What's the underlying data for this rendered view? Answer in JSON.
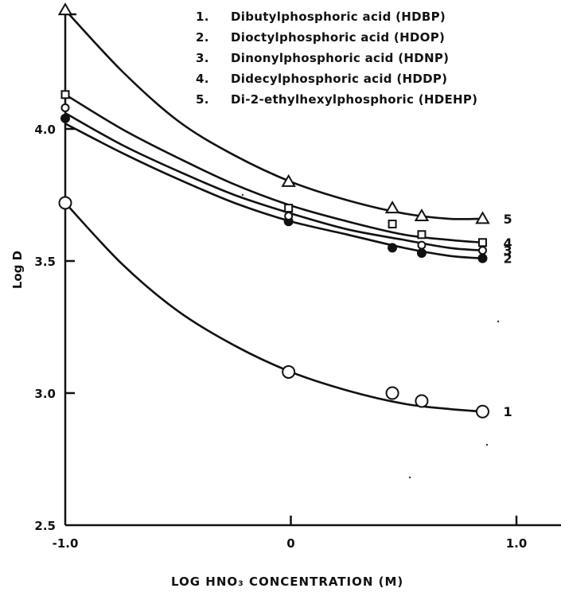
{
  "chart_data": {
    "type": "line",
    "xlabel": "LOG HNO₃ CONCENTRATION (M)",
    "ylabel": "Log D",
    "xlim": [
      -1.0,
      1.2
    ],
    "ylim": [
      2.5,
      4.5
    ],
    "xticks": [
      {
        "value": -1.0,
        "label": "-1.0"
      },
      {
        "value": 0,
        "label": "0"
      },
      {
        "value": 1.0,
        "label": "1.0"
      }
    ],
    "yticks": [
      {
        "value": 2.5,
        "label": "2.5"
      },
      {
        "value": 3.0,
        "label": "3.0"
      },
      {
        "value": 3.5,
        "label": "3.5"
      },
      {
        "value": 4.0,
        "label": "4.0"
      }
    ],
    "legend": [
      {
        "number": "1.",
        "label": "Dibutylphosphoric acid (HDBP)"
      },
      {
        "number": "2.",
        "label": "Dioctylphosphoric acid (HDOP)"
      },
      {
        "number": "3.",
        "label": "Dinonylphosphoric acid (HDNP)"
      },
      {
        "number": "4.",
        "label": "Didecylphosphoric acid (HDDP)"
      },
      {
        "number": "5.",
        "label": "Di-2-ethylhexylphosphoric (HDEHP)"
      }
    ],
    "series": [
      {
        "label": "1",
        "marker": "open-circle",
        "points": [
          {
            "x": -1.0,
            "y": 3.72
          },
          {
            "x": -0.01,
            "y": 3.08
          },
          {
            "x": 0.45,
            "y": 3.0
          },
          {
            "x": 0.58,
            "y": 2.97
          },
          {
            "x": 0.85,
            "y": 2.93
          }
        ],
        "curve": [
          {
            "x": -1.0,
            "y": 3.72
          },
          {
            "x": -0.75,
            "y": 3.49
          },
          {
            "x": -0.5,
            "y": 3.31
          },
          {
            "x": -0.25,
            "y": 3.18
          },
          {
            "x": 0.0,
            "y": 3.08
          },
          {
            "x": 0.25,
            "y": 3.01
          },
          {
            "x": 0.5,
            "y": 2.96
          },
          {
            "x": 0.7,
            "y": 2.94
          },
          {
            "x": 0.85,
            "y": 2.93
          }
        ]
      },
      {
        "label": "2",
        "marker": "filled-circle",
        "points": [
          {
            "x": -1.0,
            "y": 4.04
          },
          {
            "x": -0.01,
            "y": 3.65
          },
          {
            "x": 0.45,
            "y": 3.55
          },
          {
            "x": 0.58,
            "y": 3.53
          },
          {
            "x": 0.85,
            "y": 3.51
          }
        ],
        "curve": [
          {
            "x": -1.0,
            "y": 4.02
          },
          {
            "x": -0.75,
            "y": 3.91
          },
          {
            "x": -0.5,
            "y": 3.81
          },
          {
            "x": -0.25,
            "y": 3.72
          },
          {
            "x": 0.0,
            "y": 3.65
          },
          {
            "x": 0.25,
            "y": 3.6
          },
          {
            "x": 0.5,
            "y": 3.55
          },
          {
            "x": 0.7,
            "y": 3.52
          },
          {
            "x": 0.85,
            "y": 3.51
          }
        ]
      },
      {
        "label": "3",
        "marker": "small-open-circle",
        "points": [
          {
            "x": -1.0,
            "y": 4.08
          },
          {
            "x": -0.01,
            "y": 3.67
          },
          {
            "x": 0.58,
            "y": 3.56
          },
          {
            "x": 0.85,
            "y": 3.54
          }
        ],
        "curve": [
          {
            "x": -1.0,
            "y": 4.06
          },
          {
            "x": -0.75,
            "y": 3.94
          },
          {
            "x": -0.5,
            "y": 3.84
          },
          {
            "x": -0.25,
            "y": 3.75
          },
          {
            "x": 0.0,
            "y": 3.68
          },
          {
            "x": 0.25,
            "y": 3.62
          },
          {
            "x": 0.5,
            "y": 3.58
          },
          {
            "x": 0.7,
            "y": 3.55
          },
          {
            "x": 0.85,
            "y": 3.54
          }
        ]
      },
      {
        "label": "4",
        "marker": "open-square",
        "points": [
          {
            "x": -1.0,
            "y": 4.13
          },
          {
            "x": -0.01,
            "y": 3.7
          },
          {
            "x": 0.45,
            "y": 3.64
          },
          {
            "x": 0.58,
            "y": 3.6
          },
          {
            "x": 0.85,
            "y": 3.57
          }
        ],
        "curve": [
          {
            "x": -1.0,
            "y": 4.13
          },
          {
            "x": -0.75,
            "y": 4.0
          },
          {
            "x": -0.5,
            "y": 3.89
          },
          {
            "x": -0.25,
            "y": 3.79
          },
          {
            "x": 0.0,
            "y": 3.71
          },
          {
            "x": 0.25,
            "y": 3.65
          },
          {
            "x": 0.5,
            "y": 3.6
          },
          {
            "x": 0.7,
            "y": 3.58
          },
          {
            "x": 0.85,
            "y": 3.57
          }
        ]
      },
      {
        "label": "5",
        "marker": "open-triangle",
        "points": [
          {
            "x": -1.0,
            "y": 4.45
          },
          {
            "x": -0.01,
            "y": 3.8
          },
          {
            "x": 0.45,
            "y": 3.7
          },
          {
            "x": 0.58,
            "y": 3.67
          },
          {
            "x": 0.85,
            "y": 3.66
          }
        ],
        "curve": [
          {
            "x": -1.0,
            "y": 4.45
          },
          {
            "x": -0.75,
            "y": 4.22
          },
          {
            "x": -0.5,
            "y": 4.03
          },
          {
            "x": -0.25,
            "y": 3.9
          },
          {
            "x": 0.0,
            "y": 3.8
          },
          {
            "x": 0.25,
            "y": 3.73
          },
          {
            "x": 0.5,
            "y": 3.68
          },
          {
            "x": 0.7,
            "y": 3.66
          },
          {
            "x": 0.85,
            "y": 3.66
          }
        ]
      }
    ]
  }
}
